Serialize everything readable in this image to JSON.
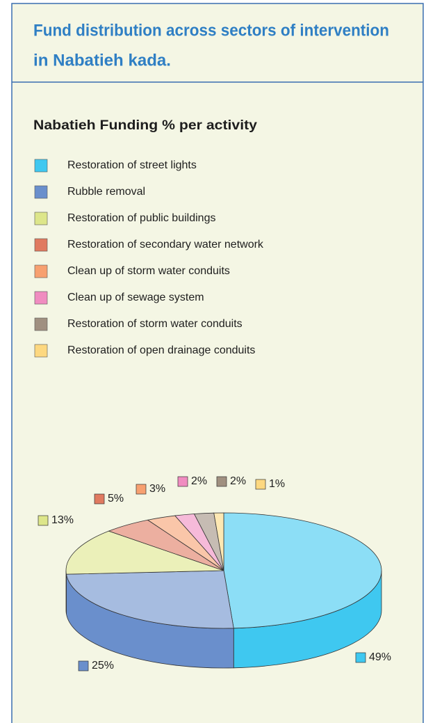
{
  "chart_data": {
    "type": "pie3d",
    "title": [
      "Fund distribution across sectors of intervention",
      "in Nabatieh kada."
    ],
    "subtitle": "Nabatieh Funding % per activity",
    "categories": [
      "Restoration of street lights",
      "Rubble removal",
      "Restoration of public buildings",
      "Restoration of secondary water network",
      "Clean up of storm water conduits",
      "Clean up of sewage system",
      "Restoration of storm water conduits",
      "Restoration of open drainage conduits"
    ],
    "values": [
      49,
      25,
      13,
      5,
      3,
      2,
      2,
      1
    ],
    "value_labels": [
      "49%",
      "25%",
      "13%",
      "5%",
      "3%",
      "2%",
      "2%",
      "1%"
    ],
    "colors": [
      "#3fc8f0",
      "#6a8fcc",
      "#dde68a",
      "#e07a60",
      "#f7a070",
      "#f08cc0",
      "#a09080",
      "#fdd880"
    ]
  }
}
